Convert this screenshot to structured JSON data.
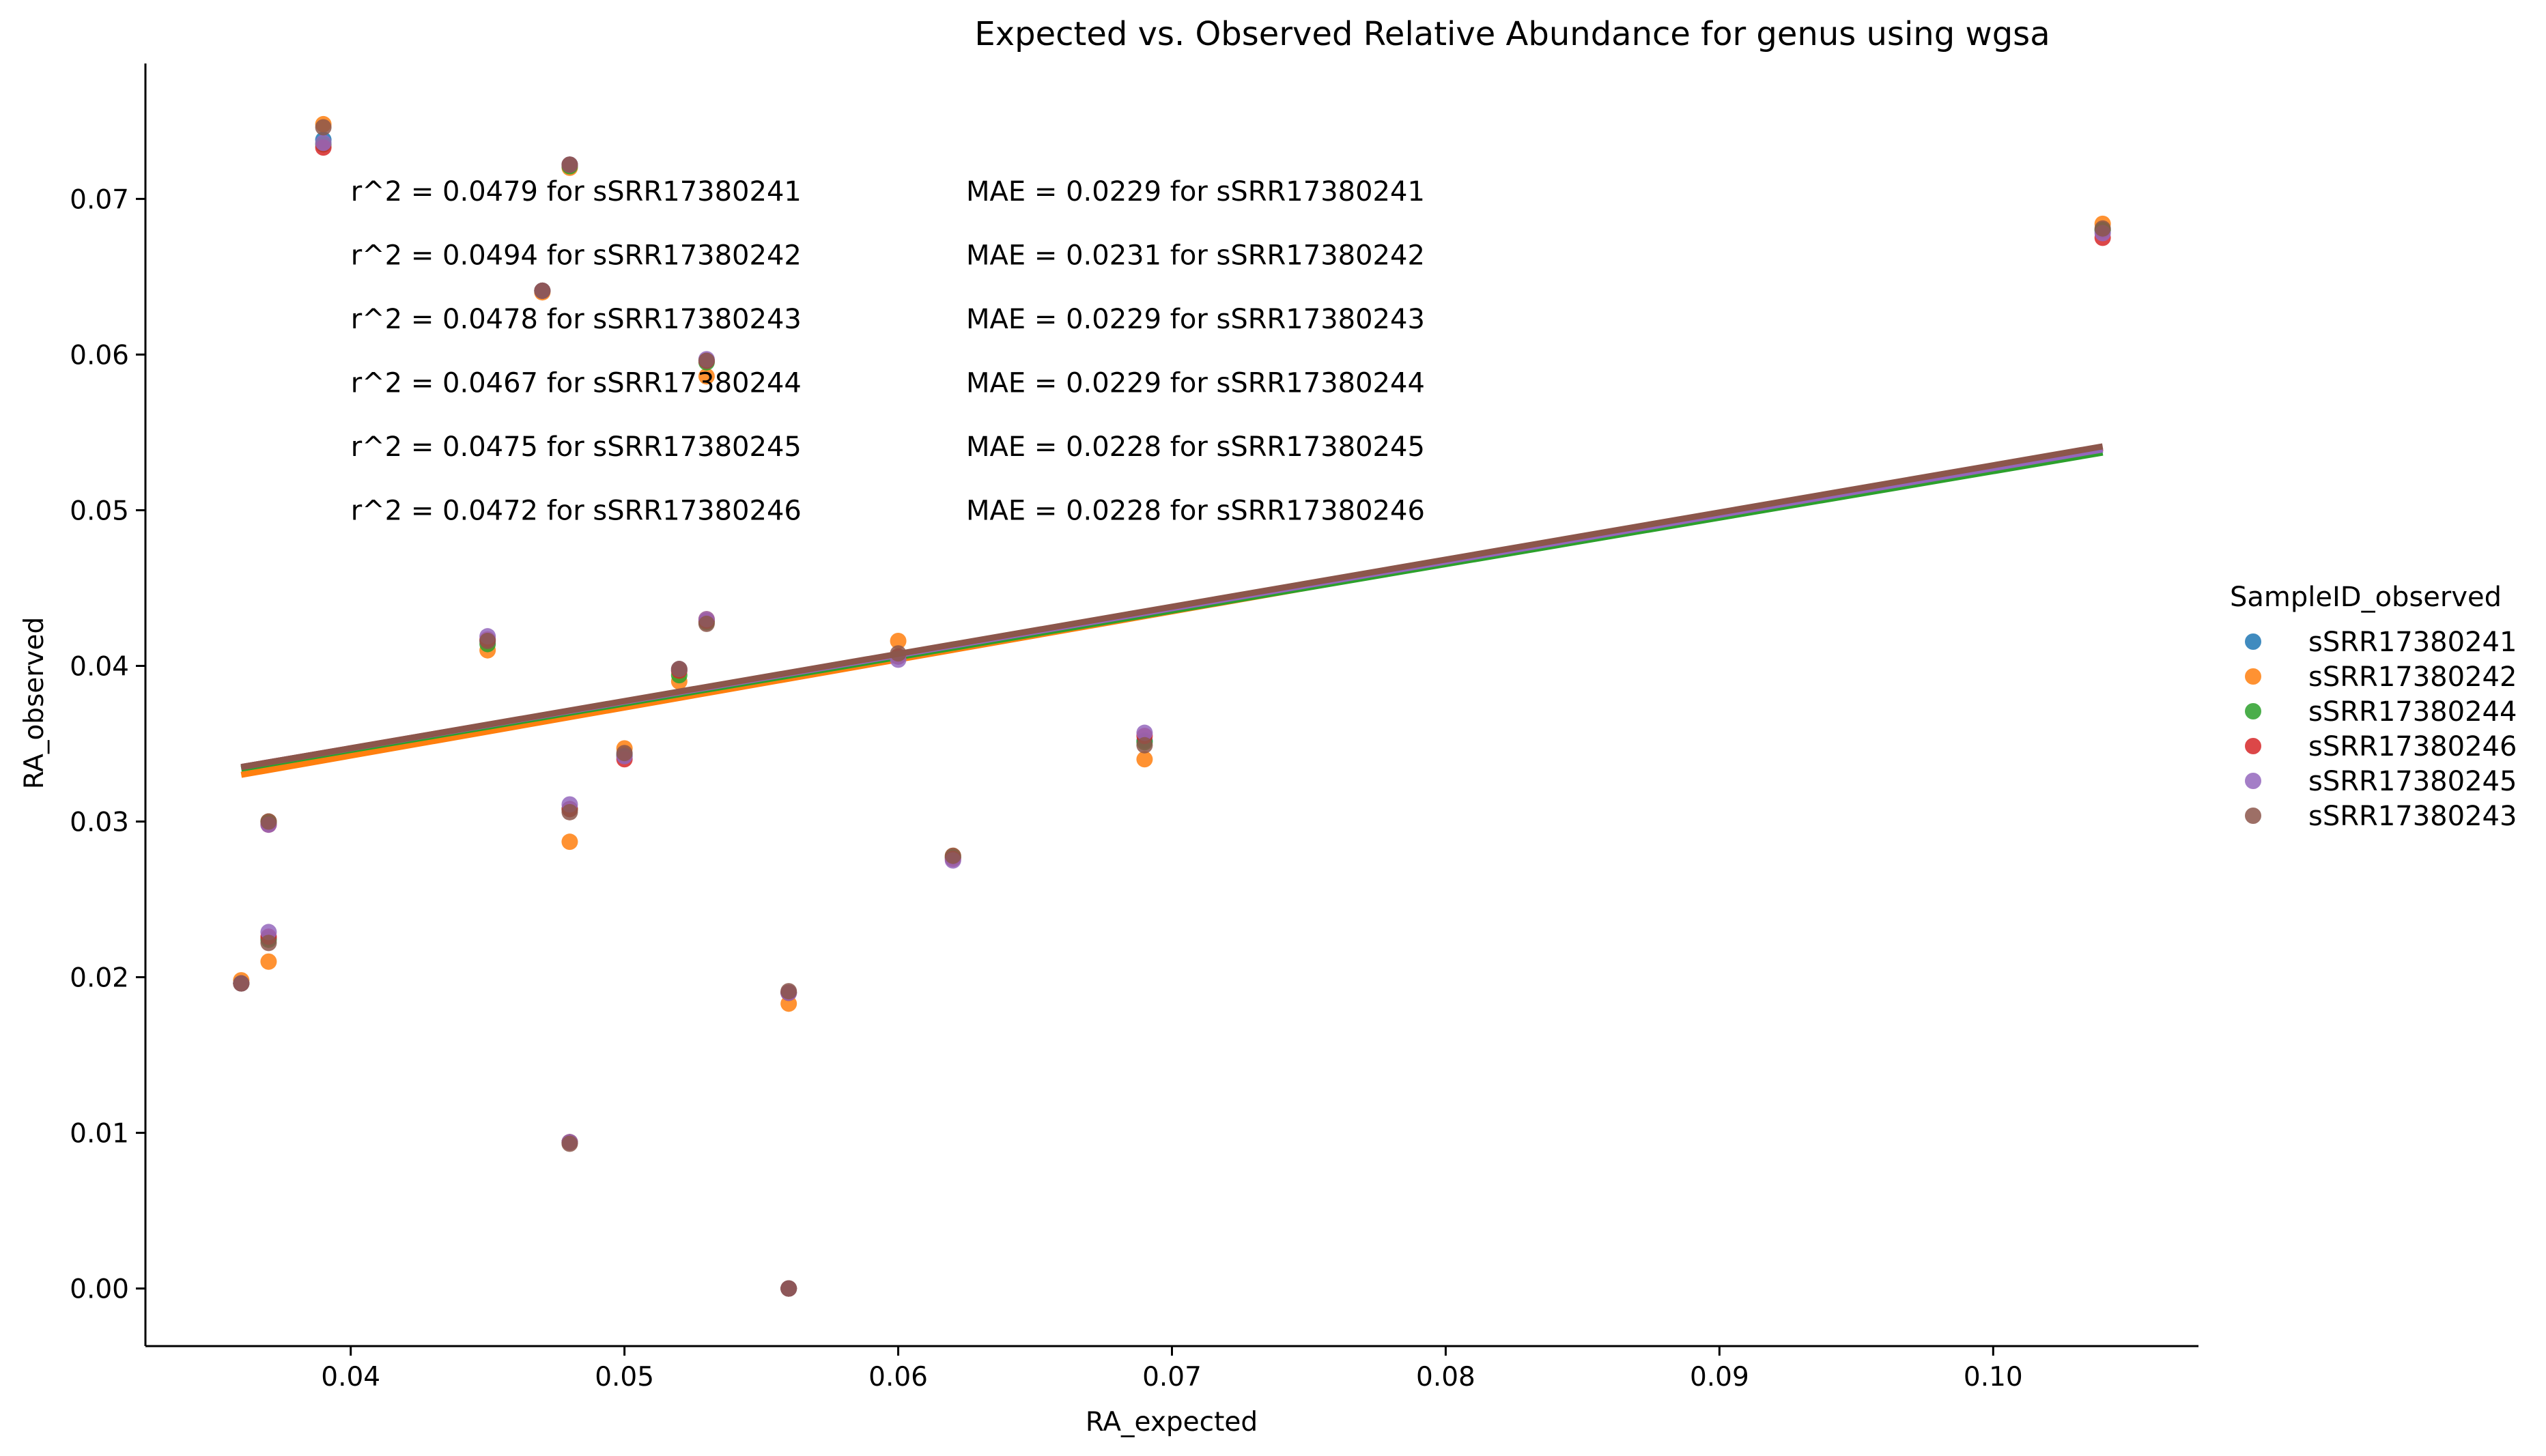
{
  "chart_data": {
    "type": "scatter",
    "title": "Expected vs. Observed Relative Abundance for genus using wgsa",
    "xlabel": "RA_expected",
    "ylabel": "RA_observed",
    "xlim": [
      0.0325,
      0.1075
    ],
    "ylim": [
      -0.0037,
      0.0787
    ],
    "xticks": [
      0.04,
      0.05,
      0.06,
      0.07,
      0.08,
      0.09,
      0.1
    ],
    "xtick_labels": [
      "0.04",
      "0.05",
      "0.06",
      "0.07",
      "0.08",
      "0.09",
      "0.10"
    ],
    "yticks": [
      0.0,
      0.01,
      0.02,
      0.03,
      0.04,
      0.05,
      0.06,
      0.07
    ],
    "ytick_labels": [
      "0.00",
      "0.01",
      "0.02",
      "0.03",
      "0.04",
      "0.05",
      "0.06",
      "0.07"
    ],
    "grid": false,
    "legend": {
      "title": "SampleID_observed",
      "placement": "right",
      "entries": [
        {
          "name": "sSRR17380241",
          "color": "#1f77b4"
        },
        {
          "name": "sSRR17380242",
          "color": "#ff7f0e"
        },
        {
          "name": "sSRR17380244",
          "color": "#2ca02c"
        },
        {
          "name": "sSRR17380246",
          "color": "#d62728"
        },
        {
          "name": "sSRR17380245",
          "color": "#9467bd"
        },
        {
          "name": "sSRR17380243",
          "color": "#8c564b"
        }
      ]
    },
    "x": [
      0.036,
      0.037,
      0.037,
      0.039,
      0.045,
      0.047,
      0.048,
      0.048,
      0.048,
      0.05,
      0.052,
      0.053,
      0.053,
      0.056,
      0.056,
      0.06,
      0.062,
      0.069,
      0.104
    ],
    "series": [
      {
        "name": "sSRR17380241",
        "color": "#1f77b4",
        "values": [
          0.0196,
          0.03,
          0.0225,
          0.0738,
          0.0416,
          0.0641,
          0.0722,
          0.0308,
          0.0094,
          0.0343,
          0.0397,
          0.0596,
          0.0429,
          0.019,
          0.0,
          0.0406,
          0.0277,
          0.0352,
          0.068
        ],
        "fit": [
          0.0334,
          0.054
        ]
      },
      {
        "name": "sSRR17380242",
        "color": "#ff7f0e",
        "values": [
          0.0198,
          0.03,
          0.021,
          0.0748,
          0.041,
          0.064,
          0.072,
          0.0287,
          0.0094,
          0.0347,
          0.039,
          0.0586,
          0.043,
          0.0183,
          0.0,
          0.0416,
          0.0278,
          0.034,
          0.0684
        ],
        "fit": [
          0.033,
          0.054
        ]
      },
      {
        "name": "sSRR17380244",
        "color": "#2ca02c",
        "values": [
          0.0196,
          0.0299,
          0.0224,
          0.0735,
          0.0414,
          0.0641,
          0.0721,
          0.0308,
          0.0094,
          0.0342,
          0.0394,
          0.0595,
          0.0428,
          0.019,
          0.0,
          0.0406,
          0.0277,
          0.0351,
          0.068
        ],
        "fit": [
          0.0334,
          0.0537
        ]
      },
      {
        "name": "sSRR17380246",
        "color": "#d62728",
        "values": [
          0.0196,
          0.0298,
          0.0226,
          0.0733,
          0.0417,
          0.0641,
          0.0722,
          0.0308,
          0.0094,
          0.034,
          0.0397,
          0.0596,
          0.0429,
          0.019,
          0.0,
          0.0406,
          0.0276,
          0.0355,
          0.0675
        ],
        "fit": [
          0.0335,
          0.054
        ]
      },
      {
        "name": "sSRR17380245",
        "color": "#9467bd",
        "values": [
          0.0196,
          0.0298,
          0.0229,
          0.0736,
          0.0419,
          0.0641,
          0.0722,
          0.0311,
          0.0094,
          0.0342,
          0.0398,
          0.0597,
          0.043,
          0.019,
          0.0,
          0.0404,
          0.0275,
          0.0357,
          0.0678
        ],
        "fit": [
          0.0335,
          0.0539
        ]
      },
      {
        "name": "sSRR17380243",
        "color": "#8c564b",
        "values": [
          0.0196,
          0.03,
          0.0222,
          0.0746,
          0.0416,
          0.0641,
          0.0722,
          0.0306,
          0.0093,
          0.0344,
          0.0398,
          0.0596,
          0.0427,
          0.0191,
          0.0,
          0.0408,
          0.0278,
          0.0349,
          0.0681
        ],
        "fit": [
          0.0335,
          0.0541
        ]
      }
    ],
    "annotations_r2": [
      "r^2 = 0.0479 for sSRR17380241",
      "r^2 = 0.0494 for sSRR17380242",
      "r^2 = 0.0478 for sSRR17380243",
      "r^2 = 0.0467 for sSRR17380244",
      "r^2 = 0.0475 for sSRR17380245",
      "r^2 = 0.0472 for sSRR17380246"
    ],
    "annotations_mae": [
      "MAE = 0.0229 for sSRR17380241",
      "MAE = 0.0231 for sSRR17380242",
      "MAE = 0.0229 for sSRR17380243",
      "MAE = 0.0229 for sSRR17380244",
      "MAE = 0.0228 for sSRR17380245",
      "MAE = 0.0228 for sSRR17380246"
    ],
    "annotation_y": [
      0.0705,
      0.0664,
      0.0623,
      0.0582,
      0.0541,
      0.05
    ]
  }
}
